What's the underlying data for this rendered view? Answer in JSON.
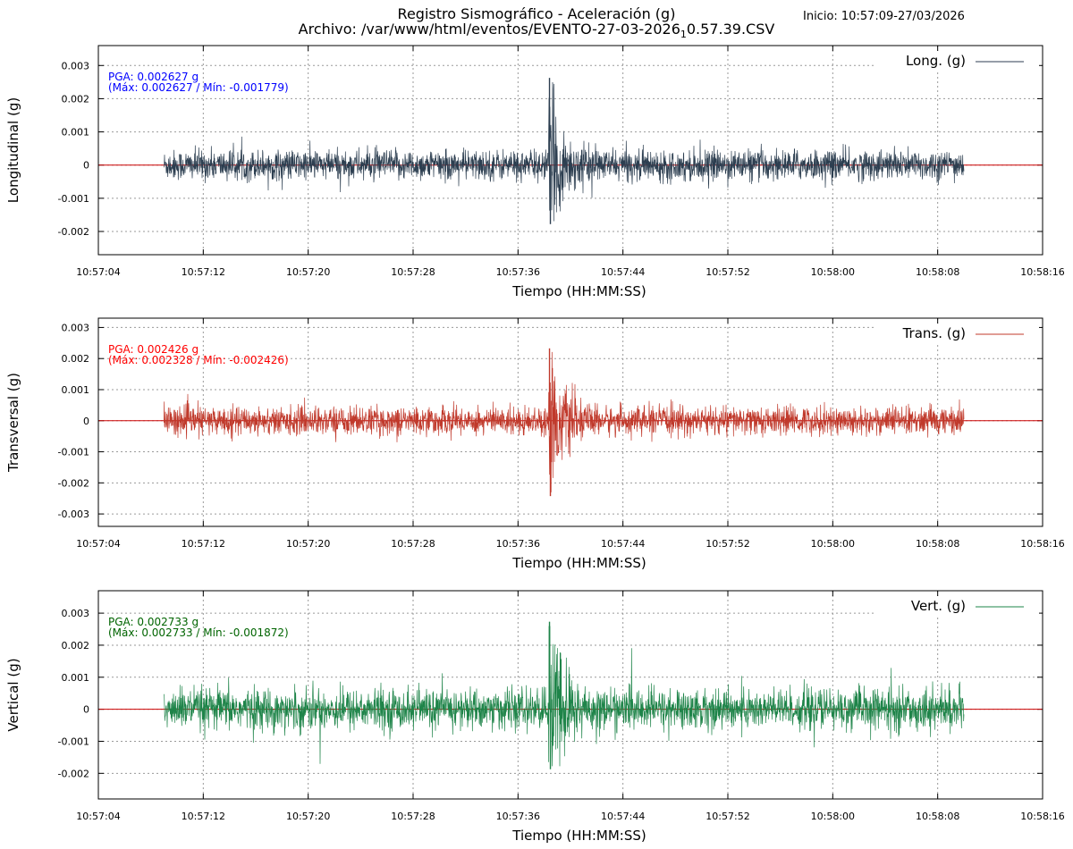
{
  "title_line1": "Registro Sismográfico - Aceleración (g)",
  "title_line2": "Archivo: /var/www/html/eventos/EVENTO-27-03-2026",
  "title_line2_sub": "1",
  "title_line2_end": "0.57.39.CSV",
  "start_label": "Inicio: 10:57:09-27/03/2026",
  "colors": {
    "long": "#2c3e50",
    "trans": "#c0392b",
    "vert": "#1e8449",
    "zero_line": "#cc0000",
    "grid": "#9a9a9a",
    "pga_long": "#0000ff",
    "pga_trans": "#ff0000",
    "pga_vert": "#006400"
  },
  "chart_data": [
    {
      "type": "line",
      "name": "longitudinal",
      "ylabel": "Longitudinal (g)",
      "xlabel": "Tiempo (HH:MM:SS)",
      "legend": "Long. (g)",
      "legend_position": "top-right",
      "pga_line1": "PGA: 0.002627 g",
      "pga_line2": "(Máx: 0.002627 / Mín: -0.001779)",
      "ylim": [
        -0.0027,
        0.0036
      ],
      "yticks": [
        0.003,
        0.002,
        0.001,
        0,
        -0.001,
        -0.002
      ],
      "ytick_labels": [
        "0.003",
        "0.002",
        "0.001",
        "0",
        "-0.001",
        "-0.002"
      ],
      "xlim": [
        "10:57:04",
        "10:58:16"
      ],
      "xtick_labels": [
        "10:57:04",
        "10:57:12",
        "10:57:20",
        "10:57:28",
        "10:57:36",
        "10:57:44",
        "10:57:52",
        "10:58:00",
        "10:58:08",
        "10:58:16"
      ],
      "signal_start": "10:57:09",
      "signal_end": "10:58:10",
      "noise_amplitude": 0.0005,
      "event_time": "10:57:38.4",
      "pga": 0.002627,
      "max": 0.002627,
      "min": -0.001779,
      "grid": true
    },
    {
      "type": "line",
      "name": "transversal",
      "ylabel": "Transversal (g)",
      "xlabel": "Tiempo (HH:MM:SS)",
      "legend": "Trans. (g)",
      "legend_position": "top-right",
      "pga_line1": "PGA: 0.002426 g",
      "pga_line2": "(Máx: 0.002328 / Mín: -0.002426)",
      "ylim": [
        -0.0034,
        0.0033
      ],
      "yticks": [
        0.003,
        0.002,
        0.001,
        0,
        -0.001,
        -0.002,
        -0.003
      ],
      "ytick_labels": [
        "0.003",
        "0.002",
        "0.001",
        "0",
        "-0.001",
        "-0.002",
        "-0.003"
      ],
      "xlim": [
        "10:57:04",
        "10:58:16"
      ],
      "xtick_labels": [
        "10:57:04",
        "10:57:12",
        "10:57:20",
        "10:57:28",
        "10:57:36",
        "10:57:44",
        "10:57:52",
        "10:58:00",
        "10:58:08",
        "10:58:16"
      ],
      "signal_start": "10:57:09",
      "signal_end": "10:58:10",
      "noise_amplitude": 0.0005,
      "event_time": "10:57:38.4",
      "pga": 0.002426,
      "max": 0.002328,
      "min": -0.002426,
      "grid": true
    },
    {
      "type": "line",
      "name": "vertical",
      "ylabel": "Vertical (g)",
      "xlabel": "Tiempo (HH:MM:SS)",
      "legend": "Vert. (g)",
      "legend_position": "top-right",
      "pga_line1": "PGA: 0.002733 g",
      "pga_line2": "(Máx: 0.002733 / Mín: -0.001872)",
      "ylim": [
        -0.0028,
        0.0037
      ],
      "yticks": [
        0.003,
        0.002,
        0.001,
        0,
        -0.001,
        -0.002
      ],
      "ytick_labels": [
        "0.003",
        "0.002",
        "0.001",
        "0",
        "-0.001",
        "-0.002"
      ],
      "xlim": [
        "10:57:04",
        "10:58:16"
      ],
      "xtick_labels": [
        "10:57:04",
        "10:57:12",
        "10:57:20",
        "10:57:28",
        "10:57:36",
        "10:57:44",
        "10:57:52",
        "10:58:00",
        "10:58:08",
        "10:58:16"
      ],
      "signal_start": "10:57:09",
      "signal_end": "10:58:10",
      "noise_amplitude": 0.0007,
      "event_time": "10:57:38.4",
      "pga": 0.002733,
      "max": 0.002733,
      "min": -0.001872,
      "grid": true
    }
  ]
}
